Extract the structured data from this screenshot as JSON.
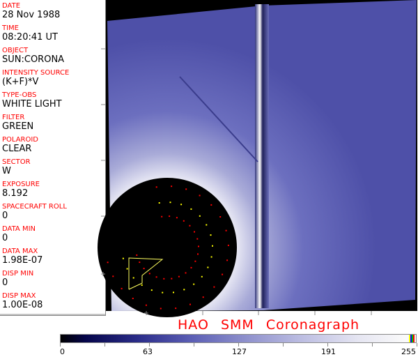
{
  "header_fields": [
    {
      "label": "DATE",
      "value": "28 Nov 1988"
    },
    {
      "label": "TIME",
      "value": "08:20:41 UT"
    },
    {
      "label": "OBJECT",
      "value": "SUN:CORONA"
    },
    {
      "label": "INTENSITY SOURCE",
      "value": "(K+F)*V"
    },
    {
      "label": "TYPE-OBS",
      "value": "WHITE LIGHT"
    },
    {
      "label": "FILTER",
      "value": "GREEN"
    },
    {
      "label": "POLAROID",
      "value": "CLEAR"
    },
    {
      "label": "SECTOR",
      "value": "W"
    },
    {
      "label": "EXPOSURE",
      "value": "8.192"
    },
    {
      "label": "SPACECRAFT ROLL",
      "value": "0"
    },
    {
      "label": "DATA MIN",
      "value": "0"
    },
    {
      "label": "DATA MAX",
      "value": "1.98E-07"
    },
    {
      "label": "DISP MIN",
      "value": "0"
    },
    {
      "label": "DISP MAX",
      "value": "1.00E-08"
    }
  ],
  "title": "HAO  SMM Coronagraph",
  "colorbar": {
    "tick_labels": [
      "0",
      "63",
      "127",
      "191",
      "255"
    ],
    "colors": {
      "low": "#000000",
      "mid": "#5c5fb5",
      "high": "#fafafa",
      "marker_yellow": "#ffff00",
      "marker_blue": "#0000ff",
      "marker_green": "#00c000",
      "marker_red": "#ff0000"
    }
  }
}
